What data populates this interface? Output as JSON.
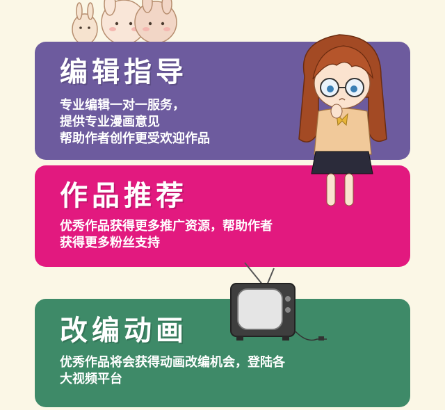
{
  "sections": [
    {
      "title": "编辑指导",
      "lines": [
        "专业编辑一对一服务，",
        "提供专业漫画意见",
        "帮助作者创作更受欢迎作品"
      ],
      "color": "#6d5b9e"
    },
    {
      "title": "作品推荐",
      "lines": [
        "优秀作品获得更多推广资源，帮助作者",
        "获得更多粉丝支持"
      ],
      "color": "#e2197f"
    },
    {
      "title": "改编动画",
      "lines": [
        "优秀作品将会获得动画改编机会，登陆各",
        "大视频平台"
      ],
      "color": "#3e8a68"
    }
  ],
  "decorations": [
    "rabbit-mascots",
    "girl-with-glasses-illustration",
    "retro-tv-illustration"
  ]
}
